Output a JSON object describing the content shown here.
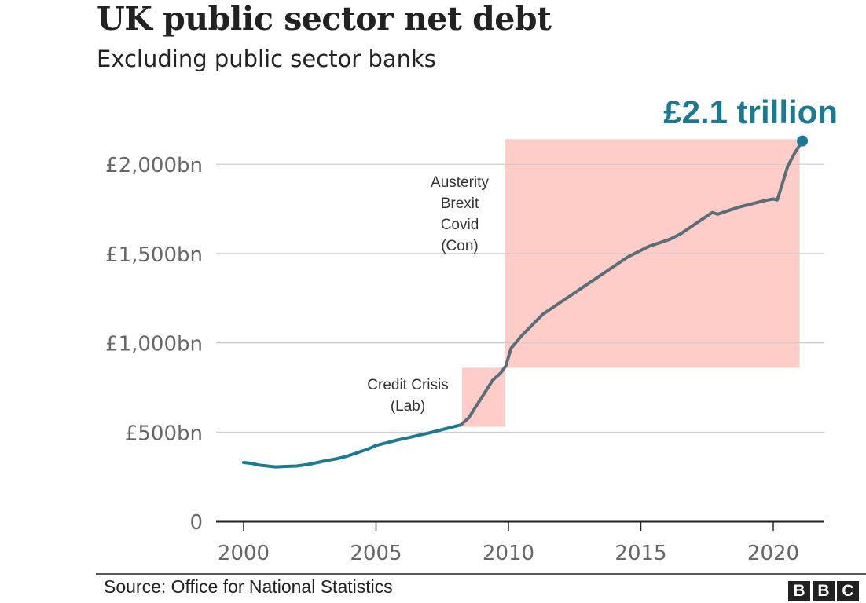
{
  "header": {
    "title": "UK public sector net debt",
    "subtitle": "Excluding public sector banks"
  },
  "footer": {
    "source": "Source: Office for National Statistics",
    "logo_letters": [
      "B",
      "B",
      "C"
    ]
  },
  "colors": {
    "line_early": "#1b7a93",
    "line_late": "#5a6e7a",
    "highlight": "#ffcdc8",
    "end_label": "#1b7a93",
    "gridline": "#cccccc",
    "axis": "#222222",
    "tick_text": "#666666",
    "annotation_text": "#333333"
  },
  "chart_data": {
    "type": "line",
    "title": "UK public sector net debt",
    "subtitle": "Excluding public sector banks",
    "xlabel": "",
    "ylabel": "",
    "xlim": [
      1999.0,
      2022.2
    ],
    "ylim": [
      0,
      2150
    ],
    "yticks": [
      {
        "value": 0,
        "label": "0"
      },
      {
        "value": 500,
        "label": "£500bn"
      },
      {
        "value": 1000,
        "label": "£1,000bn"
      },
      {
        "value": 1500,
        "label": "£1,500bn"
      },
      {
        "value": 2000,
        "label": "£2,000bn"
      }
    ],
    "xticks": [
      {
        "value": 2000,
        "label": "2000"
      },
      {
        "value": 2005,
        "label": "2005"
      },
      {
        "value": 2010,
        "label": "2010"
      },
      {
        "value": 2015,
        "label": "2015"
      },
      {
        "value": 2020,
        "label": "2020"
      }
    ],
    "grid": true,
    "series": [
      {
        "name": "Public sector net debt (£bn)",
        "x": [
          2000.0,
          2000.3,
          2000.6,
          2000.9,
          2001.2,
          2001.6,
          2002.0,
          2002.4,
          2002.8,
          2003.1,
          2003.5,
          2003.9,
          2004.3,
          2004.7,
          2005.0,
          2005.4,
          2005.8,
          2006.2,
          2006.6,
          2007.0,
          2007.4,
          2007.8,
          2008.2,
          2008.5,
          2008.8,
          2009.1,
          2009.4,
          2009.7,
          2009.9,
          2010.1,
          2010.5,
          2010.9,
          2011.3,
          2011.7,
          2012.1,
          2012.5,
          2012.9,
          2013.3,
          2013.7,
          2014.1,
          2014.5,
          2014.9,
          2015.3,
          2015.7,
          2016.1,
          2016.5,
          2016.9,
          2017.3,
          2017.7,
          2017.9,
          2018.3,
          2018.7,
          2019.1,
          2019.5,
          2019.8,
          2020.0,
          2020.15,
          2020.3,
          2020.55,
          2020.8,
          2021.1
        ],
        "values": [
          330,
          325,
          315,
          310,
          305,
          308,
          310,
          318,
          330,
          340,
          350,
          365,
          385,
          405,
          425,
          440,
          455,
          468,
          482,
          495,
          510,
          525,
          540,
          580,
          650,
          720,
          790,
          830,
          870,
          970,
          1040,
          1100,
          1160,
          1200,
          1240,
          1280,
          1320,
          1360,
          1400,
          1440,
          1480,
          1510,
          1540,
          1560,
          1580,
          1610,
          1650,
          1690,
          1730,
          1720,
          1740,
          1760,
          1775,
          1790,
          1800,
          1805,
          1800,
          1870,
          1990,
          2060,
          2130
        ]
      }
    ],
    "highlights": [
      {
        "label": "Credit Crisis (Lab)",
        "label_lines": [
          "Credit Crisis",
          "(Lab)"
        ],
        "x_start": 2008.25,
        "x_end": 2009.85,
        "y_start": 530,
        "y_end": 860
      },
      {
        "label": "Austerity Brexit Covid (Con)",
        "label_lines": [
          "Austerity",
          "Brexit",
          "Covid",
          "(Con)"
        ],
        "x_start": 2009.85,
        "x_end": 2021.0,
        "y_start": 860,
        "y_end": 2140
      }
    ],
    "end_label": "£2.1 trillion",
    "end_point": {
      "x": 2021.1,
      "value": 2130
    }
  }
}
